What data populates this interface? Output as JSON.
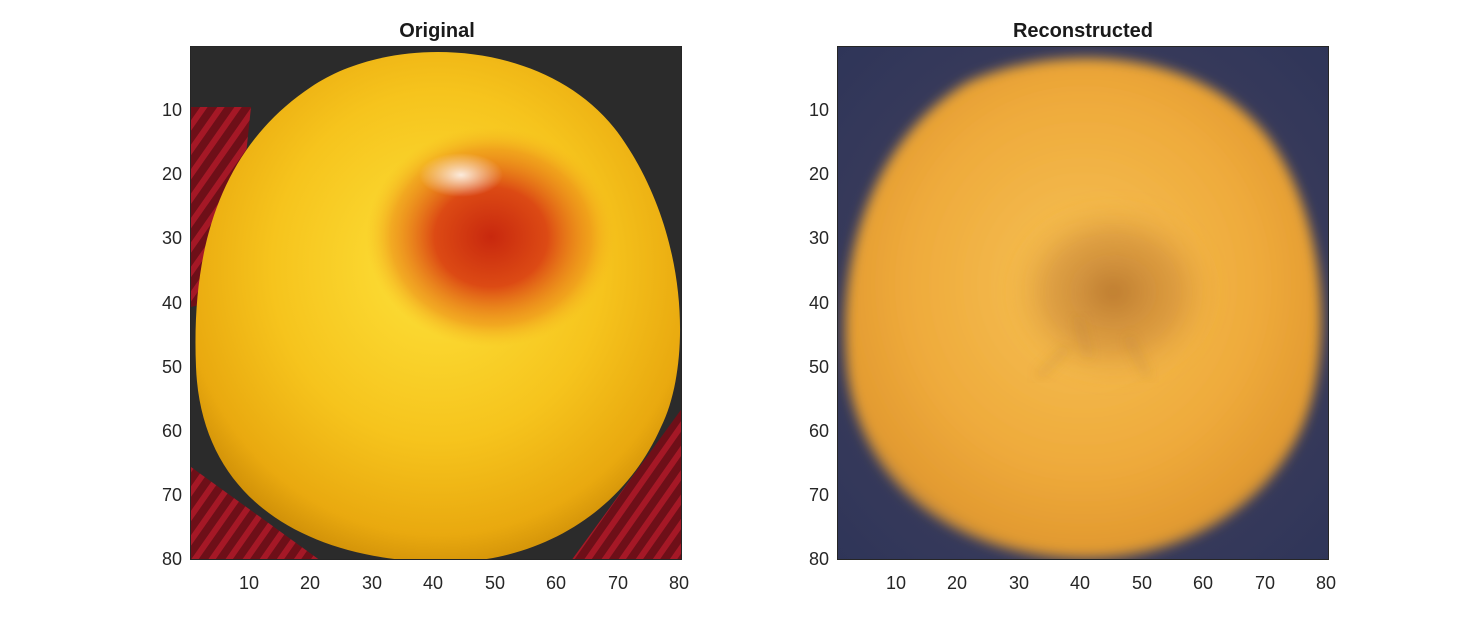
{
  "panels": [
    {
      "title": "Original",
      "xticks": [
        "10",
        "20",
        "30",
        "40",
        "50",
        "60",
        "70",
        "80"
      ],
      "yticks": [
        "10",
        "20",
        "30",
        "40",
        "50",
        "60",
        "70",
        "80"
      ]
    },
    {
      "title": "Reconstructed",
      "xticks": [
        "10",
        "20",
        "30",
        "40",
        "50",
        "60",
        "70",
        "80"
      ],
      "yticks": [
        "10",
        "20",
        "30",
        "40",
        "50",
        "60",
        "70",
        "80"
      ]
    }
  ],
  "colors": {
    "original_fruit": "#f2c21a",
    "original_spot": "#d8421a",
    "original_background": "#2b2b2b",
    "original_cloth_red": "#8e1520",
    "reconstructed_fruit": "#eda83a",
    "reconstructed_background": "#3a3a5e",
    "axis_color": "#262626"
  },
  "image_subjects": {
    "original": "yellow fruit with red blemish on dark background",
    "reconstructed": "orange fruit reconstruction on dark bluish background"
  }
}
